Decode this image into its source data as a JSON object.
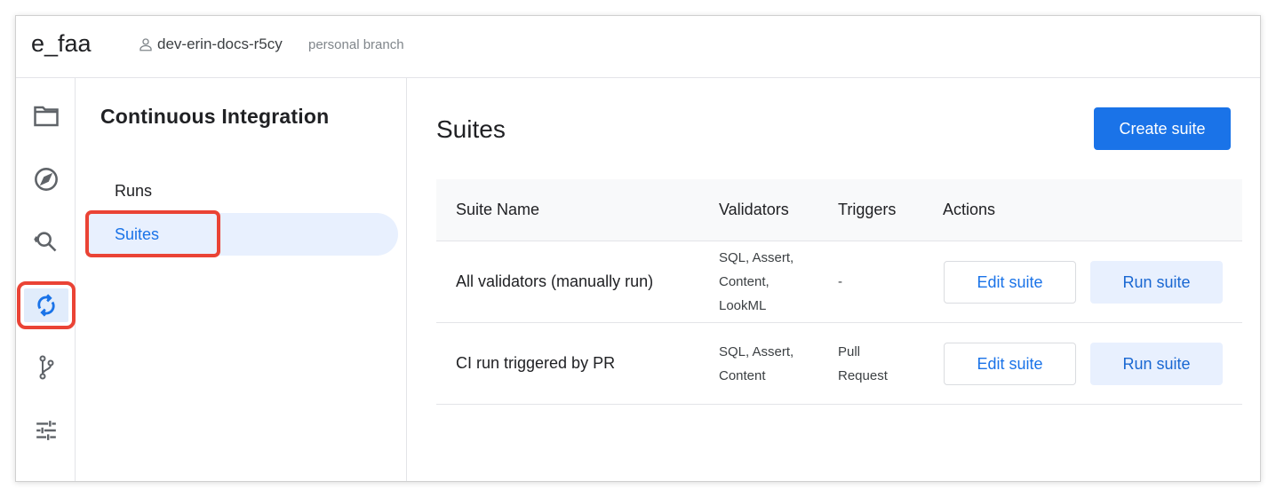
{
  "header": {
    "project": "e_faa",
    "branch": "dev-erin-docs-r5cy",
    "branch_tag": "personal branch",
    "user_icon": "person-icon"
  },
  "rail": {
    "items": [
      {
        "icon": "folder-icon"
      },
      {
        "icon": "compass-icon"
      },
      {
        "icon": "search-icon"
      },
      {
        "icon": "sync-icon",
        "active": true
      },
      {
        "icon": "git-branch-icon"
      },
      {
        "icon": "sliders-icon"
      }
    ]
  },
  "panel": {
    "title": "Continuous Integration",
    "items": [
      {
        "label": "Runs"
      },
      {
        "label": "Suites",
        "selected": true
      }
    ]
  },
  "main": {
    "title": "Suites",
    "create_label": "Create suite",
    "table": {
      "headers": [
        "Suite Name",
        "Validators",
        "Triggers",
        "Actions"
      ],
      "rows": [
        {
          "name": "All validators (manually run)",
          "validators": [
            "SQL, Assert,",
            "Content,",
            "LookML"
          ],
          "triggers": [
            "-"
          ],
          "edit": "Edit suite",
          "run": "Run suite"
        },
        {
          "name": "CI run triggered by PR",
          "validators": [
            "SQL, Assert,",
            "Content"
          ],
          "triggers": [
            "Pull",
            "Request"
          ],
          "edit": "Edit suite",
          "run": "Run suite"
        }
      ]
    }
  },
  "colors": {
    "accent": "#1a73e8",
    "highlight": "#ea4335",
    "selected_bg": "#e8f0fe"
  }
}
